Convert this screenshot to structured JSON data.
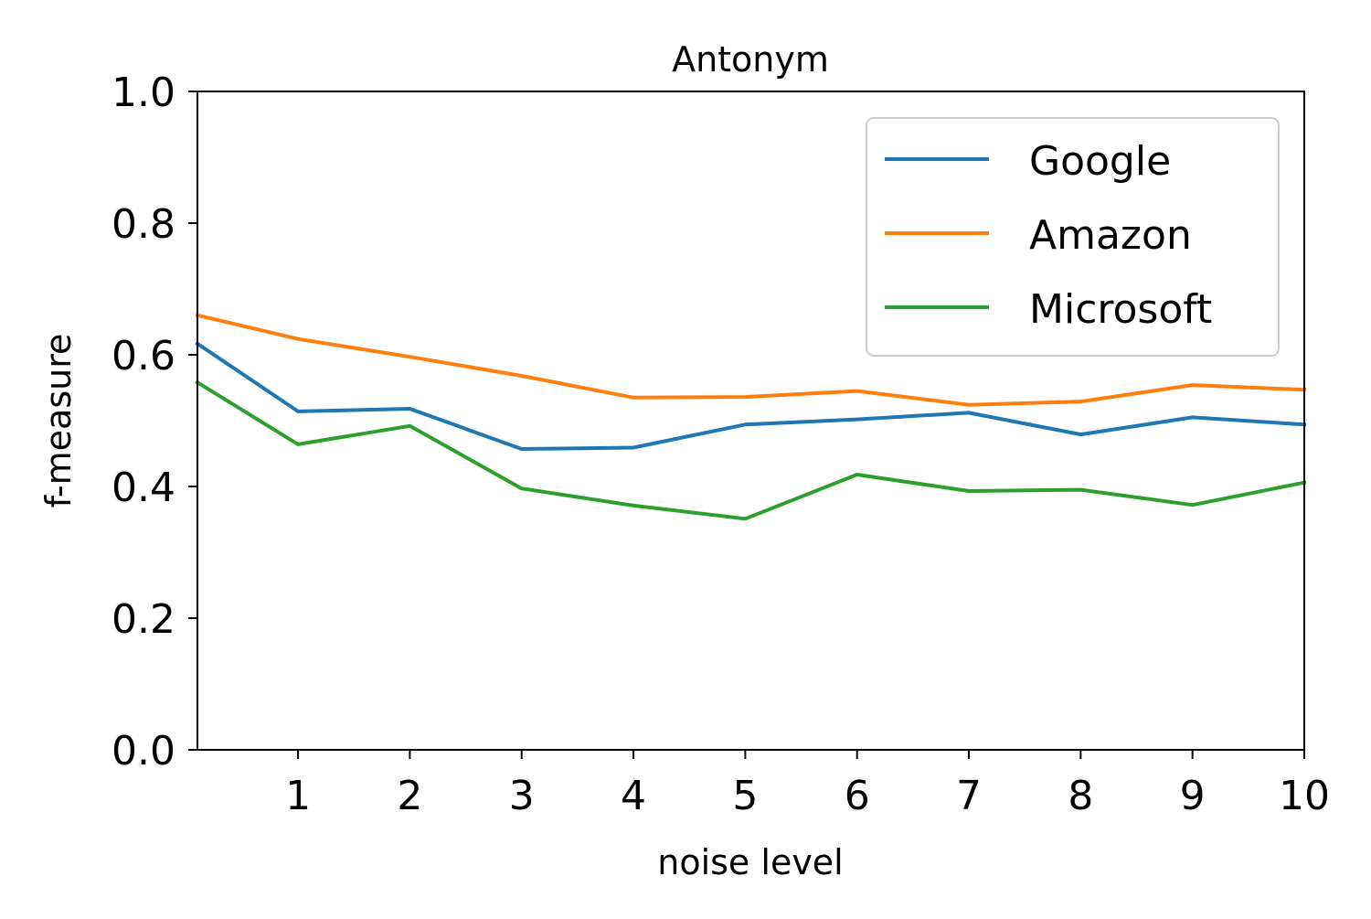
{
  "chart_data": {
    "type": "line",
    "title": "Antonym",
    "xlabel": "noise level",
    "ylabel": "f-measure",
    "xlim": [
      0.1,
      10
    ],
    "ylim": [
      0,
      1.0
    ],
    "x": [
      0.1,
      1,
      2,
      3,
      4,
      5,
      6,
      7,
      8,
      9,
      10
    ],
    "xticks": [
      1,
      2,
      3,
      4,
      5,
      6,
      7,
      8,
      9,
      10
    ],
    "xtick_labels": [
      "1",
      "2",
      "3",
      "4",
      "5",
      "6",
      "7",
      "8",
      "9",
      "10"
    ],
    "yticks": [
      0.0,
      0.2,
      0.4,
      0.6,
      0.8,
      1.0
    ],
    "ytick_labels": [
      "0.0",
      "0.2",
      "0.4",
      "0.6",
      "0.8",
      "1.0"
    ],
    "grid": false,
    "legend_position": "top-right",
    "series": [
      {
        "name": "Google",
        "color": "#1f77b4",
        "values": [
          0.617,
          0.514,
          0.518,
          0.457,
          0.459,
          0.494,
          0.502,
          0.512,
          0.479,
          0.505,
          0.494
        ]
      },
      {
        "name": "Amazon",
        "color": "#ff7f0e",
        "values": [
          0.66,
          0.624,
          0.597,
          0.568,
          0.535,
          0.536,
          0.545,
          0.524,
          0.529,
          0.554,
          0.547
        ]
      },
      {
        "name": "Microsoft",
        "color": "#2ca02c",
        "values": [
          0.558,
          0.464,
          0.492,
          0.397,
          0.371,
          0.351,
          0.418,
          0.393,
          0.395,
          0.372,
          0.406
        ]
      }
    ]
  }
}
